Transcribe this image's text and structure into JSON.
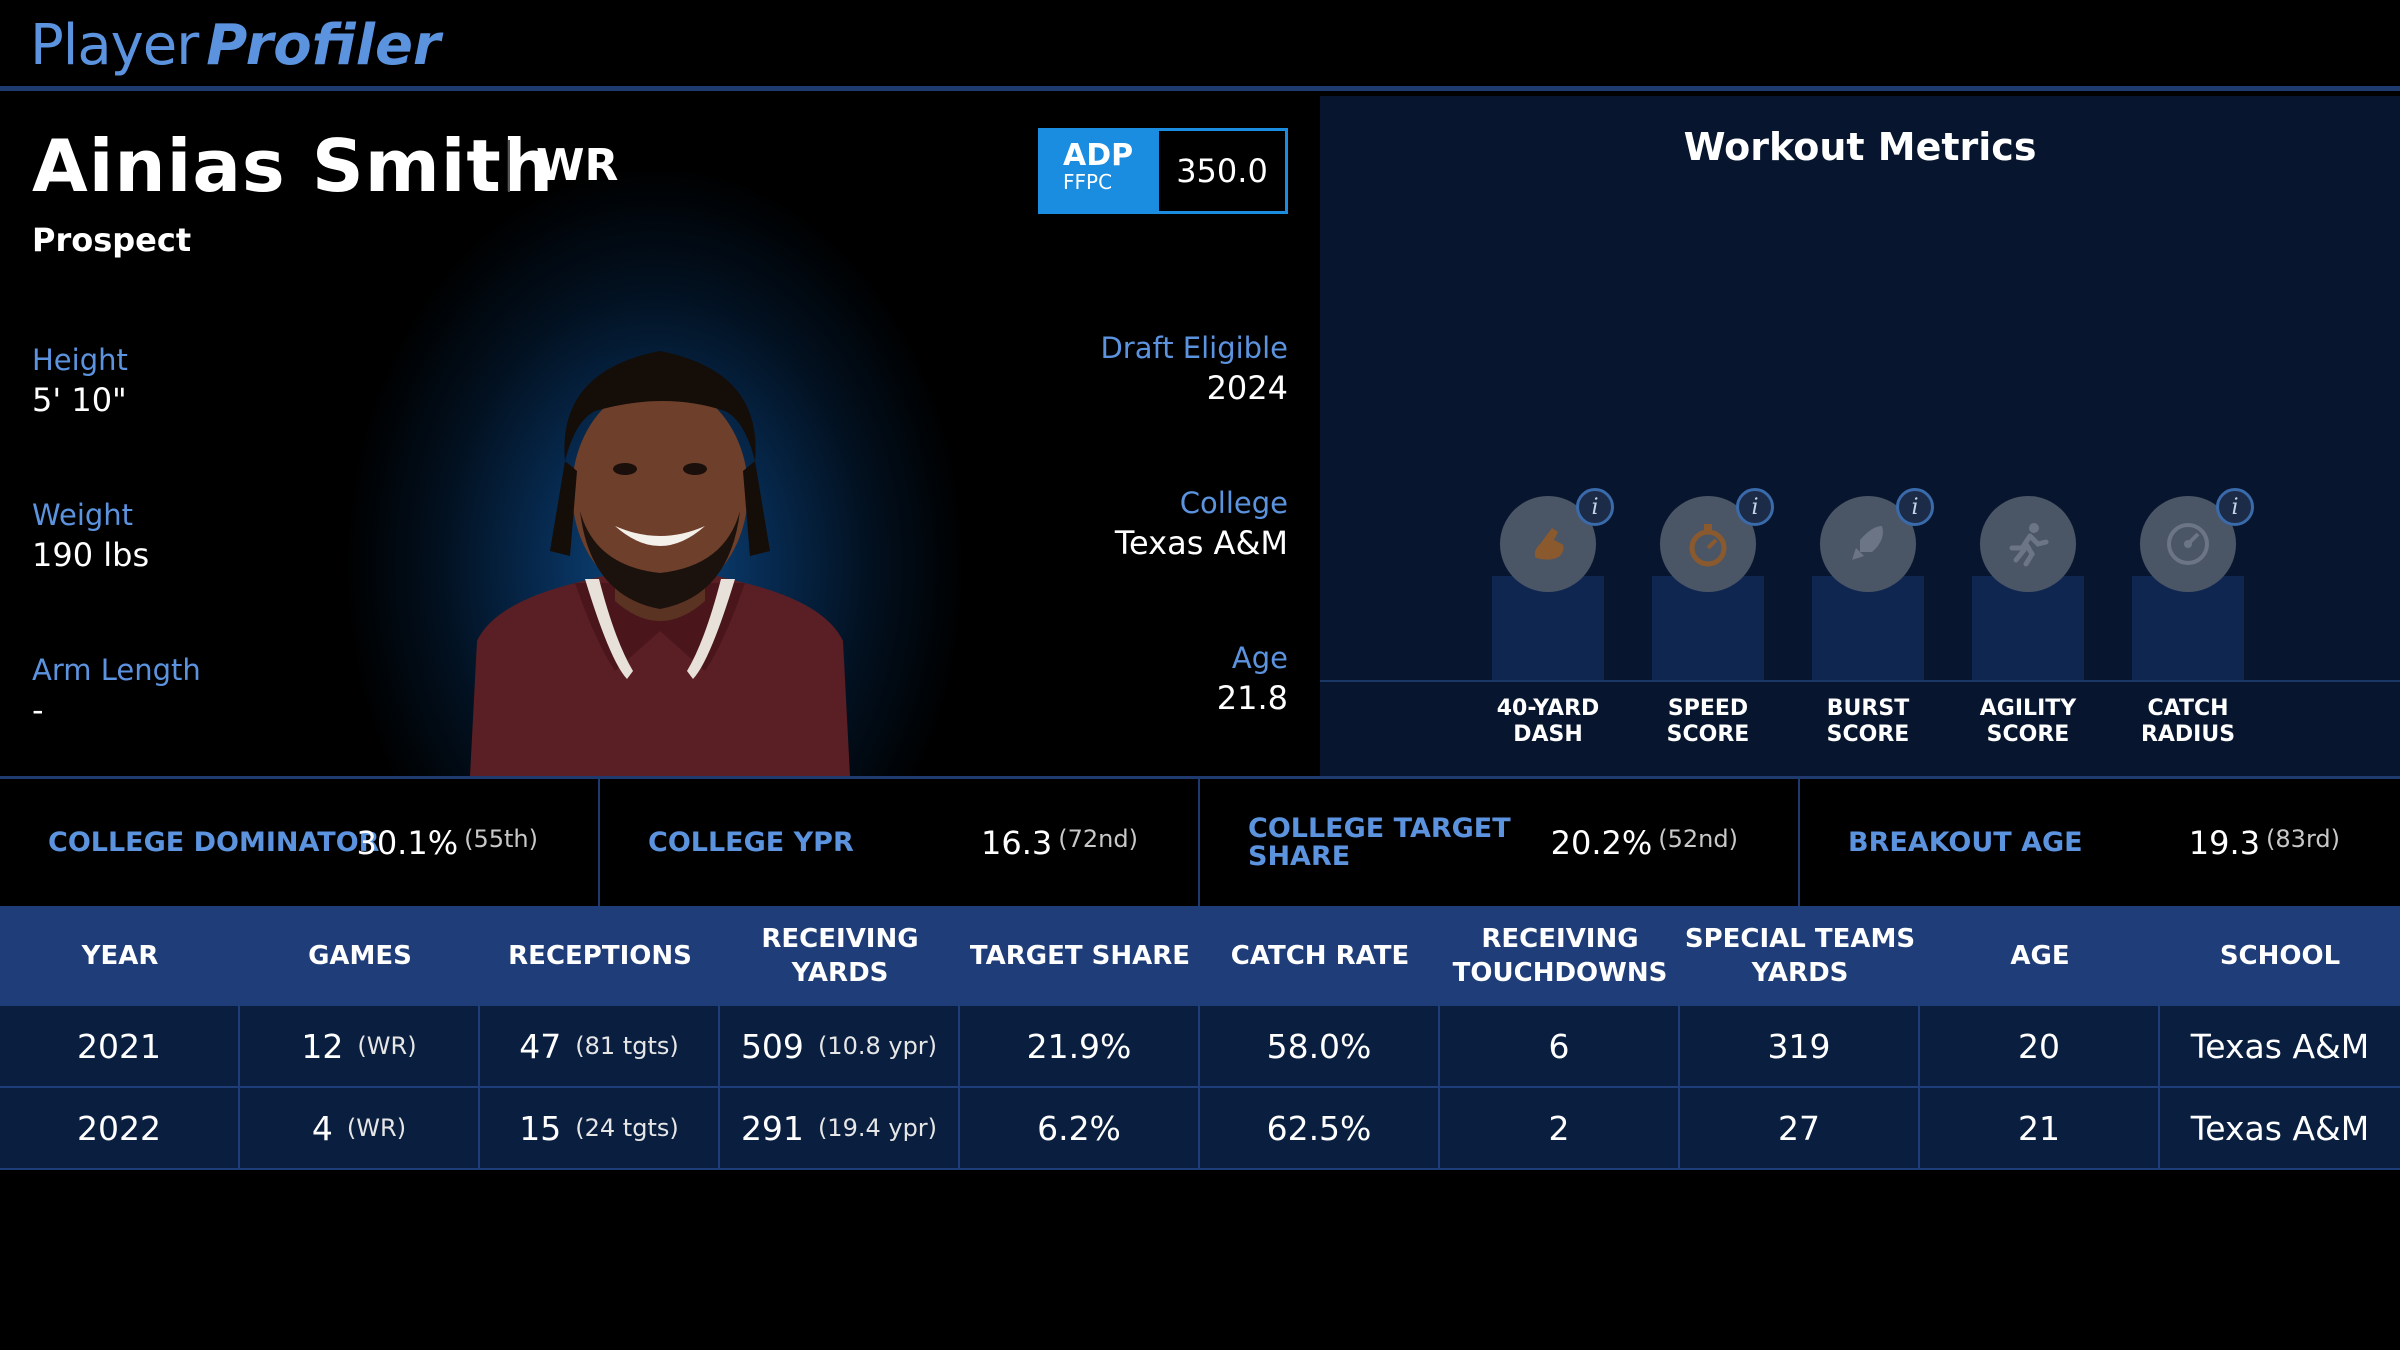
{
  "header": {
    "logo_part1": "Player",
    "logo_part2": "Profiler"
  },
  "player": {
    "name": "Ainias Smith",
    "position": "WR",
    "status": "Prospect",
    "adp": {
      "label": "ADP",
      "source": "FFPC",
      "value": "350.0"
    },
    "left_stats": [
      {
        "label": "Height",
        "value": "5' 10\""
      },
      {
        "label": "Weight",
        "value": "190 lbs"
      },
      {
        "label": "Arm Length",
        "value": "-"
      }
    ],
    "right_stats": [
      {
        "label": "Draft Eligible",
        "value": "2024"
      },
      {
        "label": "College",
        "value": "Texas A&M"
      },
      {
        "label": "Age",
        "value": "21.8"
      }
    ]
  },
  "workout": {
    "title": "Workout Metrics",
    "metrics": [
      {
        "line1": "40-YARD",
        "line2": "DASH",
        "icon": "shoe-icon",
        "has_info": true
      },
      {
        "line1": "SPEED",
        "line2": "SCORE",
        "icon": "stopwatch-icon",
        "has_info": true
      },
      {
        "line1": "BURST",
        "line2": "SCORE",
        "icon": "rocket-icon",
        "has_info": true
      },
      {
        "line1": "AGILITY",
        "line2": "SCORE",
        "icon": "runner-icon",
        "has_info": false
      },
      {
        "line1": "CATCH",
        "line2": "RADIUS",
        "icon": "target-icon",
        "has_info": true
      }
    ],
    "info_glyph": "i"
  },
  "college_stats": [
    {
      "label": "COLLEGE DOMINATOR",
      "value": "30.1%",
      "rank": "(55th)"
    },
    {
      "label": "COLLEGE YPR",
      "value": "16.3",
      "rank": "(72nd)"
    },
    {
      "label": "COLLEGE TARGET SHARE",
      "label_line1": "COLLEGE TARGET",
      "label_line2": "SHARE",
      "value": "20.2%",
      "rank": "(52nd)"
    },
    {
      "label": "BREAKOUT AGE",
      "value": "19.3",
      "rank": "(83rd)"
    }
  ],
  "table": {
    "headers": [
      [
        "YEAR"
      ],
      [
        "GAMES"
      ],
      [
        "RECEPTIONS"
      ],
      [
        "RECEIVING YARDS"
      ],
      [
        "TARGET SHARE"
      ],
      [
        "CATCH RATE"
      ],
      [
        "RECEIVING",
        "TOUCHDOWNS"
      ],
      [
        "SPECIAL TEAMS",
        "YARDS"
      ],
      [
        "AGE"
      ],
      [
        "SCHOOL"
      ]
    ],
    "rows": [
      {
        "year": "2021",
        "games": "12",
        "games_sub": "(WR)",
        "receptions": "47",
        "receptions_sub": "(81 tgts)",
        "yards": "509",
        "yards_sub": "(10.8 ypr)",
        "target_share": "21.9%",
        "catch_rate": "58.0%",
        "touchdowns": "6",
        "st_yards": "319",
        "age": "20",
        "school": "Texas A&M"
      },
      {
        "year": "2022",
        "games": "4",
        "games_sub": "(WR)",
        "receptions": "15",
        "receptions_sub": "(24 tgts)",
        "yards": "291",
        "yards_sub": "(19.4 ypr)",
        "target_share": "6.2%",
        "catch_rate": "62.5%",
        "touchdowns": "2",
        "st_yards": "27",
        "age": "21",
        "school": "Texas A&M"
      }
    ]
  }
}
